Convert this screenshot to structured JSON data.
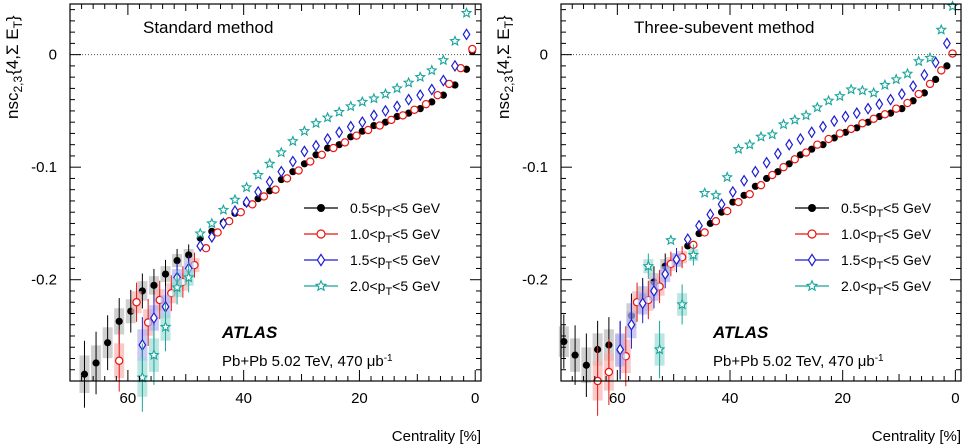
{
  "chart_data": [
    {
      "type": "scatter",
      "title": "Standard method",
      "xlabel": "Centrality [%]",
      "ylabel": "nsc2,3{4,Σ ET}",
      "xlim": [
        70,
        -1
      ],
      "ylim": [
        -0.29,
        0.045
      ],
      "x_ticks": [
        60,
        40,
        20,
        0
      ],
      "y_ticks": [
        0,
        -0.1,
        -0.2
      ],
      "reference_line": 0,
      "legend_position": "right",
      "label": "ATLAS",
      "sublabel": "Pb+Pb 5.02 TeV, 470 μb⁻¹",
      "series": [
        {
          "name": "0.5<pT<5 GeV",
          "name_html": "0.5&lt;p<tspan baseline-shift='-35%' font-size='11'>T</tspan>&lt;5 GeV",
          "marker": "filled-circle",
          "color": "#000000",
          "x": [
            67.5,
            65.5,
            63.5,
            61.5,
            59.5,
            57.5,
            55.5,
            53.5,
            51.5,
            49.5,
            47.5,
            45.5,
            43.5,
            41.5,
            39.5,
            37.5,
            35.5,
            33.5,
            31.5,
            29.5,
            27.5,
            25.5,
            23.5,
            21.5,
            19.5,
            17.5,
            15.5,
            13.5,
            11.5,
            9.5,
            7.5,
            5.5,
            3.5,
            1.5,
            0.5
          ],
          "y": [
            -0.284,
            -0.274,
            -0.256,
            -0.237,
            -0.228,
            -0.21,
            -0.205,
            -0.195,
            -0.183,
            -0.178,
            -0.163,
            -0.157,
            -0.149,
            -0.141,
            -0.132,
            -0.128,
            -0.121,
            -0.111,
            -0.104,
            -0.097,
            -0.089,
            -0.083,
            -0.08,
            -0.073,
            -0.068,
            -0.063,
            -0.06,
            -0.055,
            -0.052,
            -0.048,
            -0.042,
            -0.036,
            -0.027,
            -0.013,
            0.003
          ]
        },
        {
          "name": "1.0<pT<5 GeV",
          "name_html": "1.0&lt;p<tspan baseline-shift='-35%' font-size='11'>T</tspan>&lt;5 GeV",
          "marker": "open-circle",
          "color": "#e8140f",
          "x": [
            61.5,
            58.5,
            56.5,
            54.5,
            52.5,
            50.5,
            48.5,
            46.5,
            44.5,
            42.5,
            40.5,
            38.5,
            36.5,
            34.5,
            32.5,
            30.5,
            28.5,
            26.5,
            24.5,
            22.5,
            20.5,
            18.5,
            16.5,
            14.5,
            12.5,
            10.5,
            8.5,
            6.5,
            4.5,
            2.5,
            0.5
          ],
          "y": [
            -0.272,
            -0.22,
            -0.238,
            -0.218,
            -0.212,
            -0.202,
            -0.187,
            -0.172,
            -0.158,
            -0.148,
            -0.14,
            -0.133,
            -0.126,
            -0.12,
            -0.11,
            -0.103,
            -0.095,
            -0.089,
            -0.083,
            -0.078,
            -0.072,
            -0.067,
            -0.063,
            -0.058,
            -0.054,
            -0.049,
            -0.044,
            -0.036,
            -0.026,
            -0.012,
            0.005
          ]
        },
        {
          "name": "1.5<pT<5 GeV",
          "name_html": "1.5&lt;p<tspan baseline-shift='-35%' font-size='11'>T</tspan>&lt;5 GeV",
          "marker": "open-diamond",
          "color": "#1e1ed2",
          "x": [
            57.5,
            55.5,
            53.5,
            51.5,
            49.5,
            47.5,
            45.5,
            43.5,
            41.5,
            39.5,
            37.5,
            35.5,
            33.5,
            31.5,
            29.5,
            27.5,
            25.5,
            23.5,
            21.5,
            19.5,
            17.5,
            15.5,
            13.5,
            11.5,
            9.5,
            7.5,
            5.5,
            3.5,
            1.5
          ],
          "y": [
            -0.258,
            -0.234,
            -0.224,
            -0.198,
            -0.19,
            -0.17,
            -0.162,
            -0.15,
            -0.139,
            -0.131,
            -0.122,
            -0.113,
            -0.104,
            -0.095,
            -0.086,
            -0.081,
            -0.075,
            -0.069,
            -0.064,
            -0.06,
            -0.054,
            -0.05,
            -0.046,
            -0.04,
            -0.036,
            -0.031,
            -0.023,
            -0.01,
            0.018
          ]
        },
        {
          "name": "2.0<pT<5 GeV",
          "name_html": "2.0&lt;p<tspan baseline-shift='-35%' font-size='11'>T</tspan>&lt;5 GeV",
          "marker": "open-star",
          "color": "#19a59b",
          "x": [
            57.5,
            55.5,
            53.5,
            51.5,
            49.5,
            47.5,
            45.5,
            43.5,
            41.5,
            39.5,
            37.5,
            35.5,
            33.5,
            31.5,
            29.5,
            27.5,
            25.5,
            23.5,
            21.5,
            19.5,
            17.5,
            15.5,
            13.5,
            11.5,
            9.5,
            7.5,
            5.5,
            3.5,
            1.5
          ],
          "y": [
            -0.287,
            -0.267,
            -0.242,
            -0.207,
            -0.198,
            -0.159,
            -0.15,
            -0.138,
            -0.129,
            -0.118,
            -0.107,
            -0.097,
            -0.087,
            -0.077,
            -0.068,
            -0.061,
            -0.056,
            -0.051,
            -0.046,
            -0.042,
            -0.039,
            -0.035,
            -0.03,
            -0.025,
            -0.02,
            -0.014,
            -0.005,
            0.012,
            0.037
          ]
        }
      ]
    },
    {
      "type": "scatter",
      "title": "Three-subevent method",
      "xlabel": "Centrality [%]",
      "ylabel": "nsc2,3{4,Σ ET}",
      "xlim": [
        70,
        -1
      ],
      "ylim": [
        -0.29,
        0.045
      ],
      "x_ticks": [
        60,
        40,
        20,
        0
      ],
      "y_ticks": [
        0,
        -0.1,
        -0.2
      ],
      "reference_line": 0,
      "legend_position": "right",
      "label": "ATLAS",
      "sublabel": "Pb+Pb 5.02 TeV, 470 μb⁻¹",
      "series": [
        {
          "name": "0.5<pT<5 GeV",
          "name_html": "0.5&lt;p<tspan baseline-shift='-35%' font-size='11'>T</tspan>&lt;5 GeV",
          "marker": "filled-circle",
          "color": "#000000",
          "x": [
            69.5,
            67.5,
            65.5,
            63.5,
            61.5,
            59.5,
            57.5,
            55.5,
            53.5,
            51.5,
            49.5,
            47.5,
            45.5,
            43.5,
            41.5,
            39.5,
            37.5,
            35.5,
            33.5,
            31.5,
            29.5,
            27.5,
            25.5,
            23.5,
            21.5,
            19.5,
            17.5,
            15.5,
            13.5,
            11.5,
            9.5,
            7.5,
            5.5,
            3.5,
            1.5,
            0.5
          ],
          "y": [
            -0.255,
            -0.267,
            -0.276,
            -0.262,
            -0.258,
            -0.263,
            -0.232,
            -0.215,
            -0.202,
            -0.188,
            -0.183,
            -0.17,
            -0.159,
            -0.15,
            -0.14,
            -0.131,
            -0.125,
            -0.117,
            -0.11,
            -0.104,
            -0.097,
            -0.089,
            -0.084,
            -0.08,
            -0.074,
            -0.069,
            -0.065,
            -0.06,
            -0.055,
            -0.052,
            -0.048,
            -0.041,
            -0.034,
            -0.022,
            -0.01,
            0.001
          ]
        },
        {
          "name": "1.0<pT<5 GeV",
          "name_html": "1.0&lt;p<tspan baseline-shift='-35%' font-size='11'>T</tspan>&lt;5 GeV",
          "marker": "open-circle",
          "color": "#e8140f",
          "x": [
            63.5,
            61.5,
            58.5,
            56.5,
            54.5,
            52.5,
            50.5,
            48.5,
            46.5,
            44.5,
            42.5,
            40.5,
            38.5,
            36.5,
            34.5,
            32.5,
            30.5,
            28.5,
            26.5,
            24.5,
            22.5,
            20.5,
            18.5,
            16.5,
            14.5,
            12.5,
            10.5,
            8.5,
            6.5,
            4.5,
            2.5,
            0.5
          ],
          "y": [
            -0.29,
            -0.282,
            -0.268,
            -0.22,
            -0.218,
            -0.206,
            -0.186,
            -0.18,
            -0.169,
            -0.158,
            -0.148,
            -0.139,
            -0.131,
            -0.124,
            -0.116,
            -0.107,
            -0.1,
            -0.093,
            -0.087,
            -0.08,
            -0.075,
            -0.07,
            -0.066,
            -0.061,
            -0.057,
            -0.053,
            -0.048,
            -0.043,
            -0.035,
            -0.026,
            -0.014,
            0.001
          ]
        },
        {
          "name": "1.5<pT<5 GeV",
          "name_html": "1.5&lt;p<tspan baseline-shift='-35%' font-size='11'>T</tspan>&lt;5 GeV",
          "marker": "open-diamond",
          "color": "#1e1ed2",
          "x": [
            59.5,
            57.5,
            55.5,
            53.5,
            51.5,
            49.5,
            47.5,
            45.5,
            43.5,
            41.5,
            39.5,
            37.5,
            35.5,
            33.5,
            31.5,
            29.5,
            27.5,
            25.5,
            23.5,
            21.5,
            19.5,
            17.5,
            15.5,
            13.5,
            11.5,
            9.5,
            7.5,
            5.5,
            3.5,
            1.5
          ],
          "y": [
            -0.262,
            -0.24,
            -0.221,
            -0.21,
            -0.195,
            -0.182,
            -0.164,
            -0.152,
            -0.142,
            -0.133,
            -0.122,
            -0.112,
            -0.104,
            -0.096,
            -0.088,
            -0.08,
            -0.075,
            -0.069,
            -0.064,
            -0.059,
            -0.055,
            -0.052,
            -0.048,
            -0.044,
            -0.04,
            -0.035,
            -0.028,
            -0.018,
            -0.007,
            0.01
          ]
        },
        {
          "name": "2.0<pT<5 GeV",
          "name_html": "2.0&lt;p<tspan baseline-shift='-35%' font-size='11'>T</tspan>&lt;5 GeV",
          "marker": "open-star",
          "color": "#19a59b",
          "x": [
            54.5,
            52.5,
            50.5,
            48.5,
            46.5,
            44.5,
            42.5,
            40.5,
            38.5,
            36.5,
            34.5,
            32.5,
            30.5,
            28.5,
            26.5,
            24.5,
            22.5,
            20.5,
            18.5,
            16.5,
            14.5,
            12.5,
            10.5,
            8.5,
            6.5,
            4.5,
            2.5,
            0.5
          ],
          "y": [
            -0.188,
            -0.262,
            -0.165,
            -0.222,
            -0.178,
            -0.123,
            -0.125,
            -0.109,
            -0.084,
            -0.08,
            -0.073,
            -0.071,
            -0.062,
            -0.058,
            -0.054,
            -0.047,
            -0.041,
            -0.037,
            -0.031,
            -0.032,
            -0.034,
            -0.027,
            -0.022,
            -0.017,
            -0.006,
            -0.003,
            0.022,
            0.043
          ]
        }
      ]
    }
  ]
}
